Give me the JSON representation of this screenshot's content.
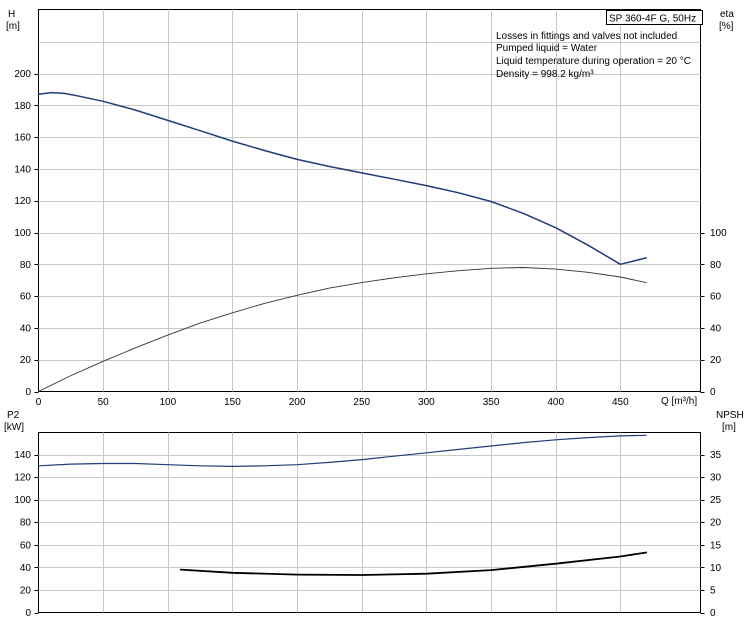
{
  "chart_data": [
    {
      "type": "line",
      "panel": "top",
      "model_label": "SP 360-4F G, 50Hz",
      "notes": [
        "Losses in fittings and valves not included",
        "Pumped liquid = Water",
        "Liquid temperature during operation = 20 °C",
        "Density = 998.2 kg/m³"
      ],
      "left_axis": {
        "label_top": "H",
        "label_unit": "[m]",
        "ylim": [
          0,
          200
        ],
        "ticks": [
          0,
          20,
          40,
          60,
          80,
          100,
          120,
          140,
          160,
          180,
          200
        ]
      },
      "right_axis": {
        "label_top": "eta",
        "label_unit": "[%]",
        "ylim": [
          0,
          200
        ],
        "ticks": [
          0,
          20,
          40,
          60,
          80,
          100
        ]
      },
      "x_axis": {
        "label": "Q [m³/h]",
        "xlim": [
          0,
          500
        ],
        "ticks": [
          0,
          50,
          100,
          150,
          200,
          250,
          300,
          350,
          400,
          450
        ]
      },
      "grid": true,
      "series": [
        {
          "axis": "left",
          "color": "#1f3d7a",
          "width": 1.5,
          "x": [
            0,
            10,
            20,
            30,
            50,
            75,
            100,
            125,
            150,
            175,
            200,
            225,
            250,
            275,
            300,
            325,
            350,
            375,
            400,
            425,
            450,
            470
          ],
          "y": [
            187,
            188,
            187.5,
            186,
            182.5,
            177,
            170.5,
            164,
            157.5,
            151.5,
            146,
            141.5,
            137.5,
            133.5,
            129.5,
            125,
            119.5,
            112,
            103,
            92,
            80,
            84
          ]
        },
        {
          "axis": "right",
          "color": "#333333",
          "width": 0.9,
          "x": [
            0,
            25,
            50,
            75,
            100,
            125,
            150,
            175,
            200,
            225,
            250,
            275,
            300,
            325,
            350,
            375,
            400,
            425,
            450,
            470
          ],
          "y": [
            0,
            10,
            19,
            27.5,
            35.5,
            43,
            49.5,
            55.5,
            60.5,
            65,
            68.5,
            71.5,
            74,
            76,
            77.5,
            78,
            77,
            75,
            72,
            68.5
          ]
        }
      ]
    },
    {
      "type": "line",
      "panel": "bottom",
      "left_axis": {
        "label_top": "P2",
        "label_unit": "[kW]",
        "ylim": [
          0,
          160
        ],
        "ticks": [
          0,
          20,
          40,
          60,
          80,
          100,
          120,
          140
        ]
      },
      "right_axis": {
        "label_top": "NPSH",
        "label_unit": "[m]",
        "ylim": [
          0,
          40
        ],
        "ticks": [
          0,
          5,
          10,
          15,
          20,
          25,
          30,
          35
        ]
      },
      "x_axis": {
        "xlim": [
          0,
          500
        ]
      },
      "grid": true,
      "series": [
        {
          "axis": "left",
          "color": "#1f3d7a",
          "width": 1.2,
          "x": [
            0,
            25,
            50,
            75,
            100,
            125,
            150,
            175,
            200,
            225,
            250,
            275,
            300,
            325,
            350,
            375,
            400,
            425,
            450,
            470
          ],
          "y": [
            130,
            131.5,
            132,
            132,
            131,
            130,
            129.5,
            130,
            131,
            133,
            135.5,
            138.5,
            141.5,
            144.5,
            147.5,
            150.5,
            153,
            155,
            156.5,
            157
          ]
        },
        {
          "axis": "right",
          "color": "#000000",
          "width": 1.8,
          "x": [
            110,
            150,
            200,
            250,
            300,
            350,
            400,
            450,
            470
          ],
          "y": [
            9.5,
            8.8,
            8.4,
            8.3,
            8.6,
            9.4,
            10.8,
            12.4,
            13.3
          ]
        }
      ]
    }
  ]
}
